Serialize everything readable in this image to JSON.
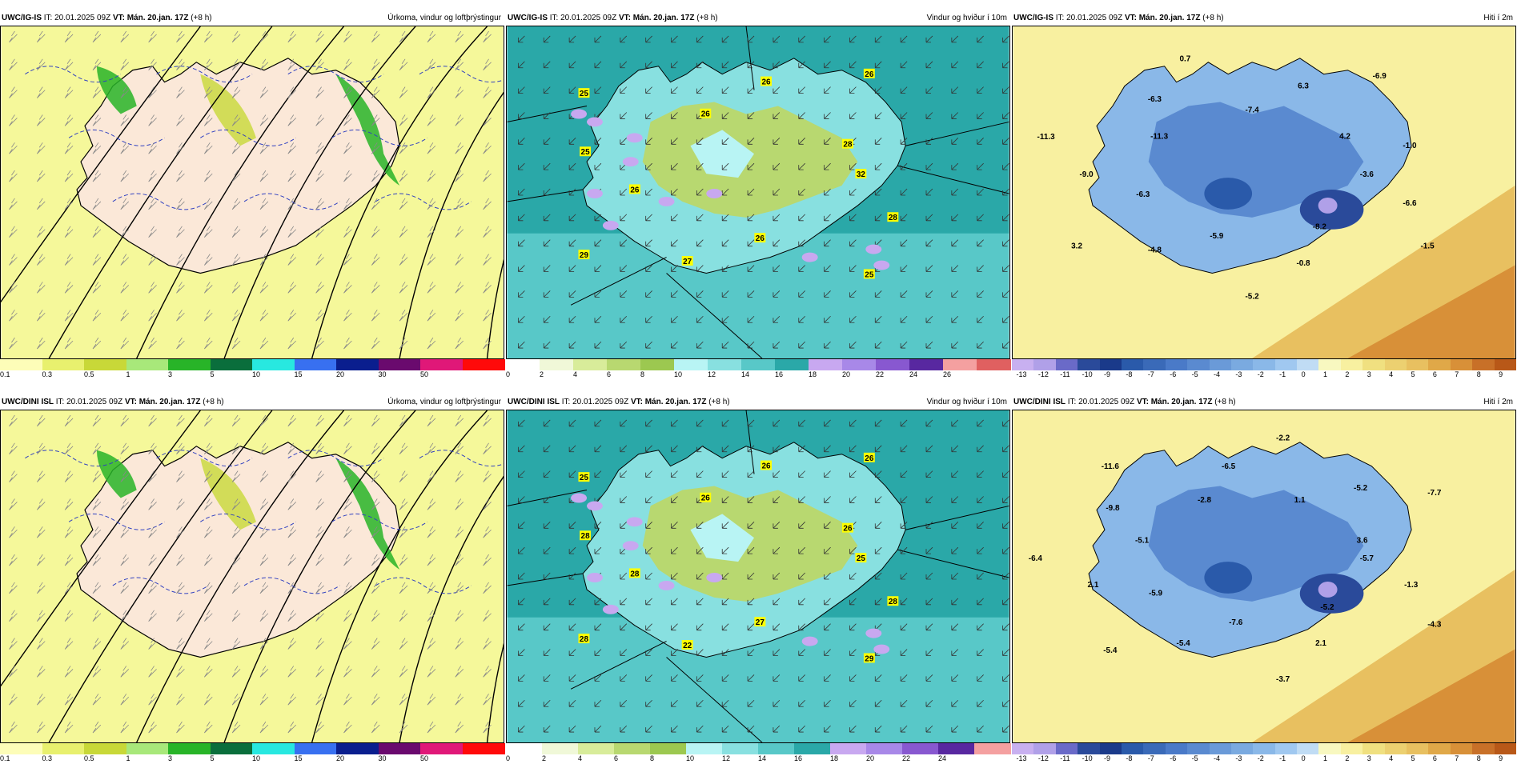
{
  "panels": [
    {
      "id": "p1",
      "header_left_src": "UWC/IG-IS",
      "header_it": " IT: 20.01.2025 09Z ",
      "header_vt": "VT: Mán. 20.jan. 17Z",
      "header_lead": " (+8 h)",
      "header_right": "Úrkoma, vindur og loftþrýstingur",
      "kind": "precip",
      "ticks": [
        "0.1",
        "0.3",
        "0.5",
        "1",
        "3",
        "5",
        "10",
        "15",
        "20",
        "30",
        "50"
      ],
      "colors": [
        "#fdfdb8",
        "#e8f06e",
        "#c8d838",
        "#a8e87a",
        "#28b428",
        "#0a6e3c",
        "#28e8e0",
        "#3870f0",
        "#0a1e8e",
        "#6a0a6e",
        "#e01878",
        "#ff0a0a"
      ],
      "labels": []
    },
    {
      "id": "p2",
      "header_left_src": "UWC/IG-IS",
      "header_it": " IT: 20.01.2025 09Z ",
      "header_vt": "VT: Mán. 20.jan. 17Z",
      "header_lead": " (+8 h)",
      "header_right": "Vindur og hviður í 10m",
      "kind": "wind",
      "ticks": [
        "0",
        "2",
        "4",
        "6",
        "8",
        "10",
        "12",
        "14",
        "16",
        "18",
        "20",
        "22",
        "24",
        "26"
      ],
      "colors": [
        "#ffffff",
        "#f0f8d8",
        "#d8ec9a",
        "#b8d870",
        "#9cc850",
        "#b8f4f4",
        "#88e0e0",
        "#58c8c8",
        "#2aa8a8",
        "#c8a8f0",
        "#a888e8",
        "#8858d0",
        "#5828a0",
        "#f4a0a0",
        "#e06060"
      ],
      "labels": [
        "32",
        "28",
        "25",
        "26",
        "27",
        "29",
        "26",
        "25",
        "25",
        "26",
        "26",
        "26",
        "28"
      ]
    },
    {
      "id": "p3",
      "header_left_src": "UWC/IG-IS",
      "header_it": " IT: 20.01.2025 09Z ",
      "header_vt": "VT: Mán. 20.jan. 17Z",
      "header_lead": " (+8 h)",
      "header_right": "Hiti í 2m",
      "kind": "temp",
      "ticks": [
        "-13",
        "-12",
        "-11",
        "-10",
        "-9",
        "-8",
        "-7",
        "-6",
        "-5",
        "-4",
        "-3",
        "-2",
        "-1",
        "0",
        "1",
        "2",
        "3",
        "4",
        "5",
        "6",
        "7",
        "8",
        "9"
      ],
      "colors": [
        "#c8b0f0",
        "#b0a0e8",
        "#6a6ac8",
        "#2a4a9a",
        "#1a3a8a",
        "#2a5aaa",
        "#3a6ab8",
        "#4a7ac8",
        "#5a8ad0",
        "#6a9ad8",
        "#7aaae0",
        "#8ab8e8",
        "#a0c8f0",
        "#c0dcf4",
        "#f8f8c0",
        "#f8f0a0",
        "#f0e080",
        "#ecd070",
        "#e8c060",
        "#e0a848",
        "#d89038",
        "#c87028",
        "#b85818"
      ],
      "labels": [
        "-3.6",
        "-6.6",
        "-1.5",
        "-8.2",
        "-0.8",
        "-5.2",
        "-5.9",
        "-4.8",
        "3.2",
        "-6.3",
        "-9.0",
        "-11.3",
        "-11.3",
        "-6.3",
        "0.7",
        "-7.4",
        "6.3",
        "-6.9",
        "4.2",
        "-1.0"
      ]
    },
    {
      "id": "p4",
      "header_left_src": "UWC/DINI ISL",
      "header_it": " IT: 20.01.2025 09Z ",
      "header_vt": "VT: Mán. 20.jan. 17Z",
      "header_lead": " (+8 h)",
      "header_right": "Úrkoma, vindur og loftþrýstingur",
      "kind": "precip",
      "ticks": [
        "0.1",
        "0.3",
        "0.5",
        "1",
        "3",
        "5",
        "10",
        "15",
        "20",
        "30",
        "50"
      ],
      "colors": [
        "#fdfdb8",
        "#e8f06e",
        "#c8d838",
        "#a8e87a",
        "#28b428",
        "#0a6e3c",
        "#28e8e0",
        "#3870f0",
        "#0a1e8e",
        "#6a0a6e",
        "#e01878",
        "#ff0a0a"
      ],
      "labels": []
    },
    {
      "id": "p5",
      "header_left_src": "UWC/DINI ISL",
      "header_it": " IT: 20.01.2025 09Z ",
      "header_vt": "VT: Mán. 20.jan. 17Z",
      "header_lead": " (+8 h)",
      "header_right": "Vindur og hviður í 10m",
      "kind": "wind",
      "ticks": [
        "0",
        "2",
        "4",
        "6",
        "8",
        "10",
        "12",
        "14",
        "16",
        "18",
        "20",
        "22",
        "24"
      ],
      "colors": [
        "#ffffff",
        "#f0f8d8",
        "#d8ec9a",
        "#b8d870",
        "#9cc850",
        "#b8f4f4",
        "#88e0e0",
        "#58c8c8",
        "#2aa8a8",
        "#c8a8f0",
        "#a888e8",
        "#8858d0",
        "#5828a0",
        "#f4a0a0"
      ],
      "labels": [
        "25",
        "28",
        "29",
        "27",
        "22",
        "28",
        "28",
        "28",
        "25",
        "26",
        "26",
        "26",
        "26"
      ]
    },
    {
      "id": "p6",
      "header_left_src": "UWC/DINI ISL",
      "header_it": " IT: 20.01.2025 09Z ",
      "header_vt": "VT: Mán. 20.jan. 17Z",
      "header_lead": " (+8 h)",
      "header_right": "Hiti í 2m",
      "kind": "temp",
      "ticks": [
        "-13",
        "-12",
        "-11",
        "-10",
        "-9",
        "-8",
        "-7",
        "-6",
        "-5",
        "-4",
        "-3",
        "-2",
        "-1",
        "0",
        "1",
        "2",
        "3",
        "4",
        "5",
        "6",
        "7",
        "8",
        "9"
      ],
      "colors": [
        "#c8b0f0",
        "#b0a0e8",
        "#6a6ac8",
        "#2a4a9a",
        "#1a3a8a",
        "#2a5aaa",
        "#3a6ab8",
        "#4a7ac8",
        "#5a8ad0",
        "#6a9ad8",
        "#7aaae0",
        "#8ab8e8",
        "#a0c8f0",
        "#c0dcf4",
        "#f8f8c0",
        "#f8f0a0",
        "#f0e080",
        "#ecd070",
        "#e8c060",
        "#e0a848",
        "#d89038",
        "#c87028",
        "#b85818"
      ],
      "labels": [
        "-5.7",
        "-1.3",
        "-4.3",
        "-5.2",
        "2.1",
        "-3.7",
        "-7.6",
        "-5.4",
        "-5.4",
        "-5.9",
        "2.1",
        "-6.4",
        "-5.1",
        "-9.8",
        "-11.6",
        "-2.8",
        "-6.5",
        "-2.2",
        "1.1",
        "-5.2",
        "-7.7",
        "3.6"
      ]
    }
  ]
}
